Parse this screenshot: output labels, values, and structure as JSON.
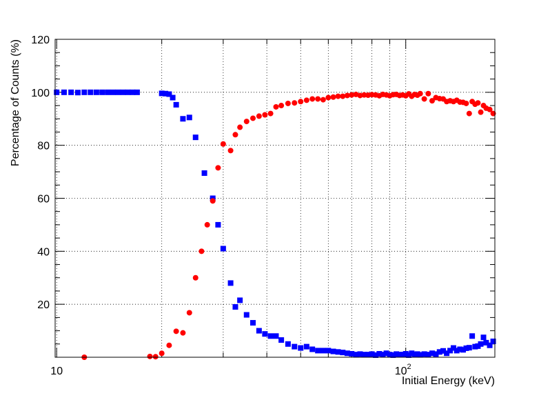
{
  "chart_data": {
    "type": "scatter",
    "xlabel": "Initial Energy (keV)",
    "ylabel": "Percentage of Counts (%)",
    "xscale": "log",
    "xlim": [
      9.9,
      180
    ],
    "ylim": [
      0,
      120
    ],
    "grid": true,
    "x_tick_labels": [
      {
        "value": 10,
        "base": "10",
        "exp": ""
      },
      {
        "value": 100,
        "base": "10",
        "exp": "2"
      }
    ],
    "y_ticks": [
      20,
      40,
      60,
      80,
      100,
      120
    ],
    "series": [
      {
        "marker": "square",
        "color": "#0000ff",
        "points": [
          [
            10,
            100
          ],
          [
            10.5,
            100
          ],
          [
            11,
            100
          ],
          [
            11.5,
            99.9
          ],
          [
            12,
            100
          ],
          [
            12.5,
            100
          ],
          [
            13,
            100
          ],
          [
            13.5,
            100
          ],
          [
            14,
            100
          ],
          [
            14.5,
            100
          ],
          [
            15,
            100
          ],
          [
            15.5,
            100
          ],
          [
            16,
            100
          ],
          [
            16.5,
            100
          ],
          [
            17,
            100
          ],
          [
            20,
            99.6
          ],
          [
            20.5,
            99.5
          ],
          [
            21,
            99.3
          ],
          [
            21.5,
            98
          ],
          [
            22,
            95.3
          ],
          [
            23,
            90
          ],
          [
            24,
            90.5
          ],
          [
            25,
            83
          ],
          [
            26.5,
            69.5
          ],
          [
            28,
            60
          ],
          [
            29,
            50
          ],
          [
            30,
            41
          ],
          [
            31.5,
            28
          ],
          [
            32.5,
            19
          ],
          [
            33.5,
            21.5
          ],
          [
            35,
            16
          ],
          [
            36.5,
            13
          ],
          [
            38,
            10
          ],
          [
            39.5,
            8.8
          ],
          [
            41,
            8
          ],
          [
            42.5,
            8
          ],
          [
            44,
            6.5
          ],
          [
            46,
            5
          ],
          [
            48,
            4
          ],
          [
            50,
            3.5
          ],
          [
            52,
            4
          ],
          [
            54,
            3
          ],
          [
            56,
            2.5
          ],
          [
            58,
            2.5
          ],
          [
            60,
            2.5
          ],
          [
            62,
            2.2
          ],
          [
            64,
            2
          ],
          [
            66,
            1.8
          ],
          [
            68,
            1.5
          ],
          [
            70,
            1.3
          ],
          [
            72,
            1
          ],
          [
            74,
            1.2
          ],
          [
            76,
            1
          ],
          [
            78,
            1
          ],
          [
            80,
            1.2
          ],
          [
            82,
            0.8
          ],
          [
            84,
            1.3
          ],
          [
            86,
            1
          ],
          [
            88,
            1.5
          ],
          [
            90,
            1
          ],
          [
            92,
            0.8
          ],
          [
            94,
            1.2
          ],
          [
            96,
            1
          ],
          [
            98,
            1
          ],
          [
            100,
            1.3
          ],
          [
            102,
            0.8
          ],
          [
            104,
            1.5
          ],
          [
            106,
            1
          ],
          [
            108,
            1.2
          ],
          [
            110,
            0.9
          ],
          [
            113,
            1.2
          ],
          [
            116,
            1
          ],
          [
            119,
            1.5
          ],
          [
            122,
            1.2
          ],
          [
            125,
            2
          ],
          [
            128,
            2.4
          ],
          [
            131,
            1.5
          ],
          [
            134,
            2.5
          ],
          [
            137,
            3.5
          ],
          [
            140,
            2.5
          ],
          [
            143,
            3
          ],
          [
            146,
            2.8
          ],
          [
            149,
            3.4
          ],
          [
            152,
            3.6
          ],
          [
            155,
            8
          ],
          [
            158,
            4
          ],
          [
            161,
            4.2
          ],
          [
            164,
            5
          ],
          [
            167,
            7.5
          ],
          [
            170,
            5.5
          ],
          [
            174,
            4.5
          ],
          [
            178,
            6
          ]
        ]
      },
      {
        "marker": "circle",
        "color": "#ff0000",
        "points": [
          [
            12,
            0
          ],
          [
            18.5,
            0.3
          ],
          [
            19.2,
            0.2
          ],
          [
            20,
            1.5
          ],
          [
            21,
            4.5
          ],
          [
            22,
            9.8
          ],
          [
            23,
            9.2
          ],
          [
            24,
            16.8
          ],
          [
            25,
            30
          ],
          [
            26,
            40
          ],
          [
            27,
            50
          ],
          [
            28,
            59
          ],
          [
            29,
            71.5
          ],
          [
            30,
            80.5
          ],
          [
            31.5,
            78
          ],
          [
            32.5,
            84
          ],
          [
            33.5,
            86.8
          ],
          [
            35,
            89
          ],
          [
            36.5,
            90.2
          ],
          [
            38,
            91
          ],
          [
            39.5,
            91.5
          ],
          [
            41,
            92
          ],
          [
            42.5,
            94.5
          ],
          [
            44,
            95
          ],
          [
            46,
            95.8
          ],
          [
            48,
            96
          ],
          [
            50,
            96.5
          ],
          [
            52,
            97
          ],
          [
            54,
            97.5
          ],
          [
            56,
            97.5
          ],
          [
            58,
            97.2
          ],
          [
            60,
            98
          ],
          [
            62,
            98.2
          ],
          [
            64,
            98.5
          ],
          [
            66,
            98.5
          ],
          [
            68,
            98.8
          ],
          [
            70,
            99
          ],
          [
            72,
            99.2
          ],
          [
            74,
            98.8
          ],
          [
            76,
            99
          ],
          [
            78,
            98.9
          ],
          [
            80,
            99.1
          ],
          [
            82,
            99
          ],
          [
            84,
            98.7
          ],
          [
            86,
            99.2
          ],
          [
            88,
            99
          ],
          [
            90,
            98.7
          ],
          [
            92,
            99.1
          ],
          [
            94,
            99.2
          ],
          [
            96,
            98.8
          ],
          [
            98,
            99
          ],
          [
            100,
            98.7
          ],
          [
            102,
            99.4
          ],
          [
            104,
            98.5
          ],
          [
            106,
            99.2
          ],
          [
            108,
            98.9
          ],
          [
            110,
            99.5
          ],
          [
            113,
            97.5
          ],
          [
            116,
            99.5
          ],
          [
            119,
            96.8
          ],
          [
            122,
            98
          ],
          [
            125,
            97.6
          ],
          [
            128,
            97.5
          ],
          [
            131,
            96.5
          ],
          [
            134,
            96.8
          ],
          [
            137,
            96.5
          ],
          [
            140,
            97
          ],
          [
            143,
            96.3
          ],
          [
            146,
            96.2
          ],
          [
            149,
            95.8
          ],
          [
            152,
            92
          ],
          [
            155,
            96.5
          ],
          [
            158,
            95.5
          ],
          [
            161,
            96
          ],
          [
            164,
            92.5
          ],
          [
            167,
            95
          ],
          [
            170,
            94
          ],
          [
            174,
            93.5
          ],
          [
            178,
            92
          ]
        ]
      }
    ]
  }
}
